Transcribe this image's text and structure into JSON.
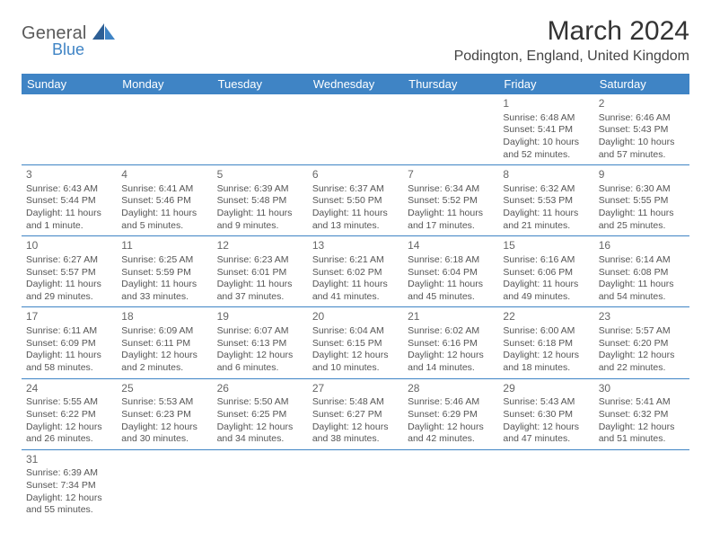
{
  "brand": {
    "general": "General",
    "blue": "Blue",
    "sail_color": "#3f84c5",
    "text_gray": "#5a5a5a"
  },
  "title": "March 2024",
  "location": "Podington, England, United Kingdom",
  "colors": {
    "header_bg": "#3f84c5",
    "header_fg": "#ffffff",
    "cell_border": "#3f84c5",
    "body_text": "#555555"
  },
  "weekday_headers": [
    "Sunday",
    "Monday",
    "Tuesday",
    "Wednesday",
    "Thursday",
    "Friday",
    "Saturday"
  ],
  "weeks": [
    [
      null,
      null,
      null,
      null,
      null,
      {
        "d": "1",
        "sr": "6:48 AM",
        "ss": "5:41 PM",
        "dl": "10 hours and 52 minutes."
      },
      {
        "d": "2",
        "sr": "6:46 AM",
        "ss": "5:43 PM",
        "dl": "10 hours and 57 minutes."
      }
    ],
    [
      {
        "d": "3",
        "sr": "6:43 AM",
        "ss": "5:44 PM",
        "dl": "11 hours and 1 minute."
      },
      {
        "d": "4",
        "sr": "6:41 AM",
        "ss": "5:46 PM",
        "dl": "11 hours and 5 minutes."
      },
      {
        "d": "5",
        "sr": "6:39 AM",
        "ss": "5:48 PM",
        "dl": "11 hours and 9 minutes."
      },
      {
        "d": "6",
        "sr": "6:37 AM",
        "ss": "5:50 PM",
        "dl": "11 hours and 13 minutes."
      },
      {
        "d": "7",
        "sr": "6:34 AM",
        "ss": "5:52 PM",
        "dl": "11 hours and 17 minutes."
      },
      {
        "d": "8",
        "sr": "6:32 AM",
        "ss": "5:53 PM",
        "dl": "11 hours and 21 minutes."
      },
      {
        "d": "9",
        "sr": "6:30 AM",
        "ss": "5:55 PM",
        "dl": "11 hours and 25 minutes."
      }
    ],
    [
      {
        "d": "10",
        "sr": "6:27 AM",
        "ss": "5:57 PM",
        "dl": "11 hours and 29 minutes."
      },
      {
        "d": "11",
        "sr": "6:25 AM",
        "ss": "5:59 PM",
        "dl": "11 hours and 33 minutes."
      },
      {
        "d": "12",
        "sr": "6:23 AM",
        "ss": "6:01 PM",
        "dl": "11 hours and 37 minutes."
      },
      {
        "d": "13",
        "sr": "6:21 AM",
        "ss": "6:02 PM",
        "dl": "11 hours and 41 minutes."
      },
      {
        "d": "14",
        "sr": "6:18 AM",
        "ss": "6:04 PM",
        "dl": "11 hours and 45 minutes."
      },
      {
        "d": "15",
        "sr": "6:16 AM",
        "ss": "6:06 PM",
        "dl": "11 hours and 49 minutes."
      },
      {
        "d": "16",
        "sr": "6:14 AM",
        "ss": "6:08 PM",
        "dl": "11 hours and 54 minutes."
      }
    ],
    [
      {
        "d": "17",
        "sr": "6:11 AM",
        "ss": "6:09 PM",
        "dl": "11 hours and 58 minutes."
      },
      {
        "d": "18",
        "sr": "6:09 AM",
        "ss": "6:11 PM",
        "dl": "12 hours and 2 minutes."
      },
      {
        "d": "19",
        "sr": "6:07 AM",
        "ss": "6:13 PM",
        "dl": "12 hours and 6 minutes."
      },
      {
        "d": "20",
        "sr": "6:04 AM",
        "ss": "6:15 PM",
        "dl": "12 hours and 10 minutes."
      },
      {
        "d": "21",
        "sr": "6:02 AM",
        "ss": "6:16 PM",
        "dl": "12 hours and 14 minutes."
      },
      {
        "d": "22",
        "sr": "6:00 AM",
        "ss": "6:18 PM",
        "dl": "12 hours and 18 minutes."
      },
      {
        "d": "23",
        "sr": "5:57 AM",
        "ss": "6:20 PM",
        "dl": "12 hours and 22 minutes."
      }
    ],
    [
      {
        "d": "24",
        "sr": "5:55 AM",
        "ss": "6:22 PM",
        "dl": "12 hours and 26 minutes."
      },
      {
        "d": "25",
        "sr": "5:53 AM",
        "ss": "6:23 PM",
        "dl": "12 hours and 30 minutes."
      },
      {
        "d": "26",
        "sr": "5:50 AM",
        "ss": "6:25 PM",
        "dl": "12 hours and 34 minutes."
      },
      {
        "d": "27",
        "sr": "5:48 AM",
        "ss": "6:27 PM",
        "dl": "12 hours and 38 minutes."
      },
      {
        "d": "28",
        "sr": "5:46 AM",
        "ss": "6:29 PM",
        "dl": "12 hours and 42 minutes."
      },
      {
        "d": "29",
        "sr": "5:43 AM",
        "ss": "6:30 PM",
        "dl": "12 hours and 47 minutes."
      },
      {
        "d": "30",
        "sr": "5:41 AM",
        "ss": "6:32 PM",
        "dl": "12 hours and 51 minutes."
      }
    ],
    [
      {
        "d": "31",
        "sr": "6:39 AM",
        "ss": "7:34 PM",
        "dl": "12 hours and 55 minutes."
      },
      null,
      null,
      null,
      null,
      null,
      null
    ]
  ]
}
